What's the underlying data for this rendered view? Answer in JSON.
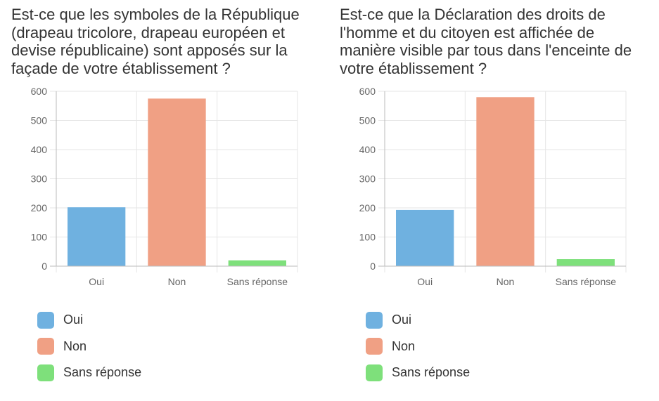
{
  "chart_data": [
    {
      "type": "bar",
      "title": "Est-ce que les symboles de la République (drapeau tricolore, drapeau européen et devise républicaine) sont apposés sur la façade de votre établissement ?",
      "categories": [
        "Oui",
        "Non",
        "Sans réponse"
      ],
      "values": [
        202,
        575,
        20
      ],
      "colors": [
        "#6fb1e0",
        "#f0a084",
        "#7ee07b"
      ],
      "ylim": [
        0,
        600
      ],
      "yticks": [
        0,
        100,
        200,
        300,
        400,
        500,
        600
      ],
      "grid": true,
      "legend_position": "bottom",
      "legend": [
        "Oui",
        "Non",
        "Sans réponse"
      ]
    },
    {
      "type": "bar",
      "title": "Est-ce que la Déclaration des droits de l'homme et du citoyen est affichée de manière visible par tous dans l'enceinte de votre établissement ?",
      "categories": [
        "Oui",
        "Non",
        "Sans réponse"
      ],
      "values": [
        193,
        580,
        24
      ],
      "colors": [
        "#6fb1e0",
        "#f0a084",
        "#7ee07b"
      ],
      "ylim": [
        0,
        600
      ],
      "yticks": [
        0,
        100,
        200,
        300,
        400,
        500,
        600
      ],
      "grid": true,
      "legend_position": "bottom",
      "legend": [
        "Oui",
        "Non",
        "Sans réponse"
      ]
    }
  ]
}
